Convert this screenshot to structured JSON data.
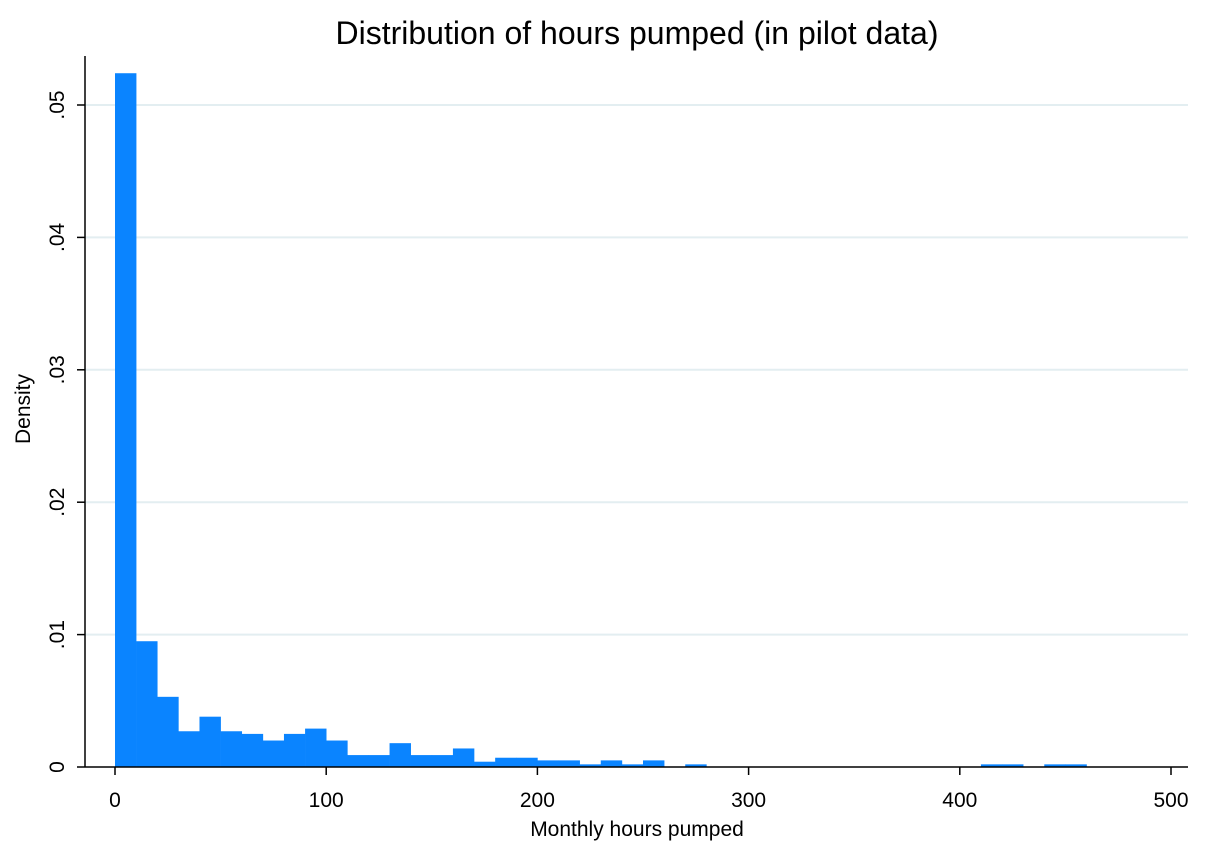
{
  "chart_data": {
    "type": "bar",
    "title": "Distribution of hours pumped (in pilot data)",
    "xlabel": "Monthly hours pumped",
    "ylabel": "Density",
    "xlim": [
      0,
      500
    ],
    "ylim": [
      0,
      0.053
    ],
    "xticks": [
      {
        "value": 0,
        "label": "0"
      },
      {
        "value": 100,
        "label": "100"
      },
      {
        "value": 200,
        "label": "200"
      },
      {
        "value": 300,
        "label": "300"
      },
      {
        "value": 400,
        "label": "400"
      },
      {
        "value": 500,
        "label": "500"
      }
    ],
    "yticks": [
      {
        "value": 0,
        "label": "0"
      },
      {
        "value": 0.01,
        "label": ".01"
      },
      {
        "value": 0.02,
        "label": ".02"
      },
      {
        "value": 0.03,
        "label": ".03"
      },
      {
        "value": 0.04,
        "label": ".04"
      },
      {
        "value": 0.05,
        "label": ".05"
      }
    ],
    "grid": true,
    "bar_color": "#0a84ff",
    "bin_width": 10,
    "bins": [
      {
        "x": 0,
        "density": 0.0524
      },
      {
        "x": 10,
        "density": 0.0095
      },
      {
        "x": 20,
        "density": 0.0053
      },
      {
        "x": 30,
        "density": 0.0027
      },
      {
        "x": 40,
        "density": 0.0038
      },
      {
        "x": 50,
        "density": 0.0027
      },
      {
        "x": 60,
        "density": 0.0025
      },
      {
        "x": 70,
        "density": 0.002
      },
      {
        "x": 80,
        "density": 0.0025
      },
      {
        "x": 90,
        "density": 0.0029
      },
      {
        "x": 100,
        "density": 0.002
      },
      {
        "x": 110,
        "density": 0.0009
      },
      {
        "x": 120,
        "density": 0.0009
      },
      {
        "x": 130,
        "density": 0.0018
      },
      {
        "x": 140,
        "density": 0.0009
      },
      {
        "x": 150,
        "density": 0.0009
      },
      {
        "x": 160,
        "density": 0.0014
      },
      {
        "x": 170,
        "density": 0.0004
      },
      {
        "x": 180,
        "density": 0.0007
      },
      {
        "x": 190,
        "density": 0.0007
      },
      {
        "x": 200,
        "density": 0.0005
      },
      {
        "x": 210,
        "density": 0.0005
      },
      {
        "x": 220,
        "density": 0.0002
      },
      {
        "x": 230,
        "density": 0.0005
      },
      {
        "x": 240,
        "density": 0.0002
      },
      {
        "x": 250,
        "density": 0.0005
      },
      {
        "x": 270,
        "density": 0.0002
      },
      {
        "x": 410,
        "density": 0.0002
      },
      {
        "x": 420,
        "density": 0.0002
      },
      {
        "x": 440,
        "density": 0.0002
      },
      {
        "x": 450,
        "density": 0.0002
      }
    ]
  }
}
